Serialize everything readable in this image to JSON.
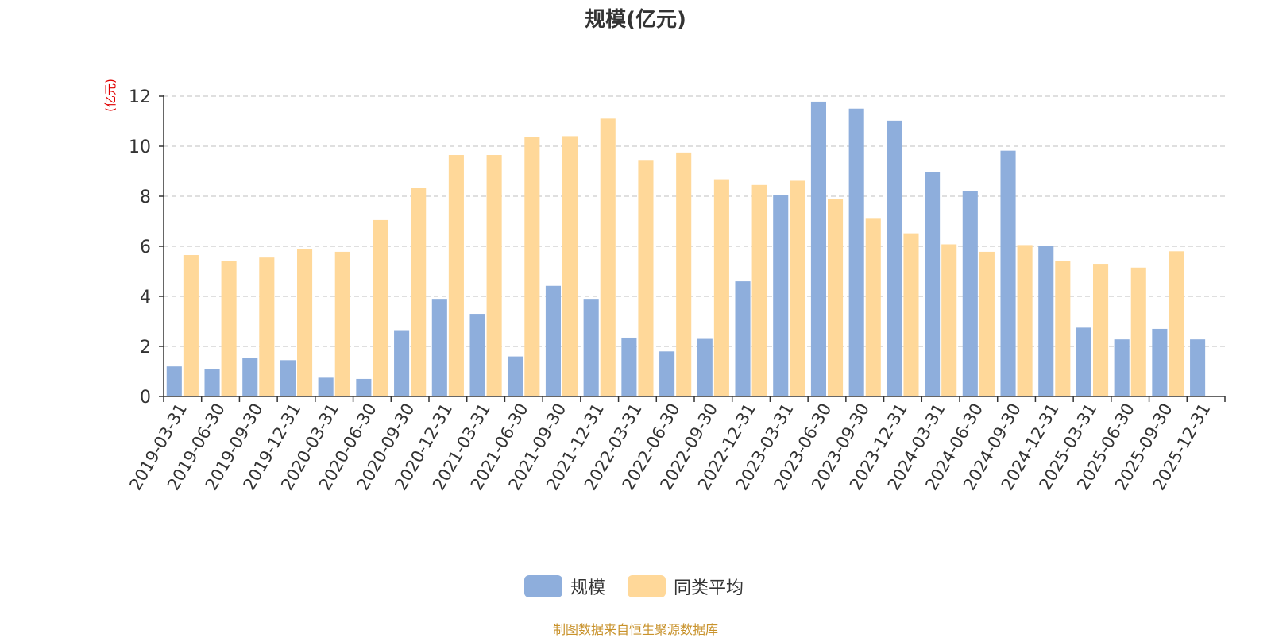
{
  "title": "规模(亿元)",
  "y_unit_label": "(亿元)",
  "source_note": "制图数据来自恒生聚源数据库",
  "colors": {
    "series1": "#8eaedc",
    "series2": "#ffd899",
    "axis": "#333333",
    "grid": "#cccccc"
  },
  "legend": [
    {
      "label": "规模",
      "color": "#8eaedc"
    },
    {
      "label": "同类平均",
      "color": "#ffd899"
    }
  ],
  "chart_data": {
    "type": "bar",
    "title": "规模(亿元)",
    "ylabel": "(亿元)",
    "xlabel": "",
    "ylim": [
      0,
      12
    ],
    "yticks": [
      0,
      2,
      4,
      6,
      8,
      10,
      12
    ],
    "grid": true,
    "legend_position": "bottom",
    "categories": [
      "2019-03-31",
      "2019-06-30",
      "2019-09-30",
      "2019-12-31",
      "2020-03-31",
      "2020-06-30",
      "2020-09-30",
      "2020-12-31",
      "2021-03-31",
      "2021-06-30",
      "2021-09-30",
      "2021-12-31",
      "2022-03-31",
      "2022-06-30",
      "2022-09-30",
      "2022-12-31",
      "2023-03-31",
      "2023-06-30",
      "2023-09-30",
      "2023-12-31",
      "2024-03-31",
      "2024-06-30",
      "2024-09-30",
      "2024-12-31",
      "2025-03-31",
      "2025-06-30",
      "2025-09-30",
      "2025-12-31"
    ],
    "series": [
      {
        "name": "规模",
        "color": "#8eaedc",
        "values": [
          1.2,
          1.1,
          1.55,
          1.45,
          0.75,
          0.7,
          2.65,
          3.9,
          3.3,
          1.6,
          4.42,
          3.9,
          2.35,
          1.8,
          2.3,
          4.6,
          8.05,
          11.78,
          11.5,
          11.02,
          8.98,
          8.2,
          9.82,
          6.0,
          2.75,
          2.28,
          2.7,
          2.28
        ]
      },
      {
        "name": "同类平均",
        "color": "#ffd899",
        "values": [
          5.65,
          5.4,
          5.55,
          5.88,
          5.78,
          7.05,
          8.32,
          9.65,
          9.65,
          10.35,
          10.4,
          11.1,
          9.42,
          9.75,
          8.68,
          8.45,
          8.62,
          7.88,
          7.1,
          6.52,
          6.08,
          5.78,
          6.05,
          5.4,
          5.3,
          5.15,
          5.8,
          null
        ]
      }
    ]
  }
}
